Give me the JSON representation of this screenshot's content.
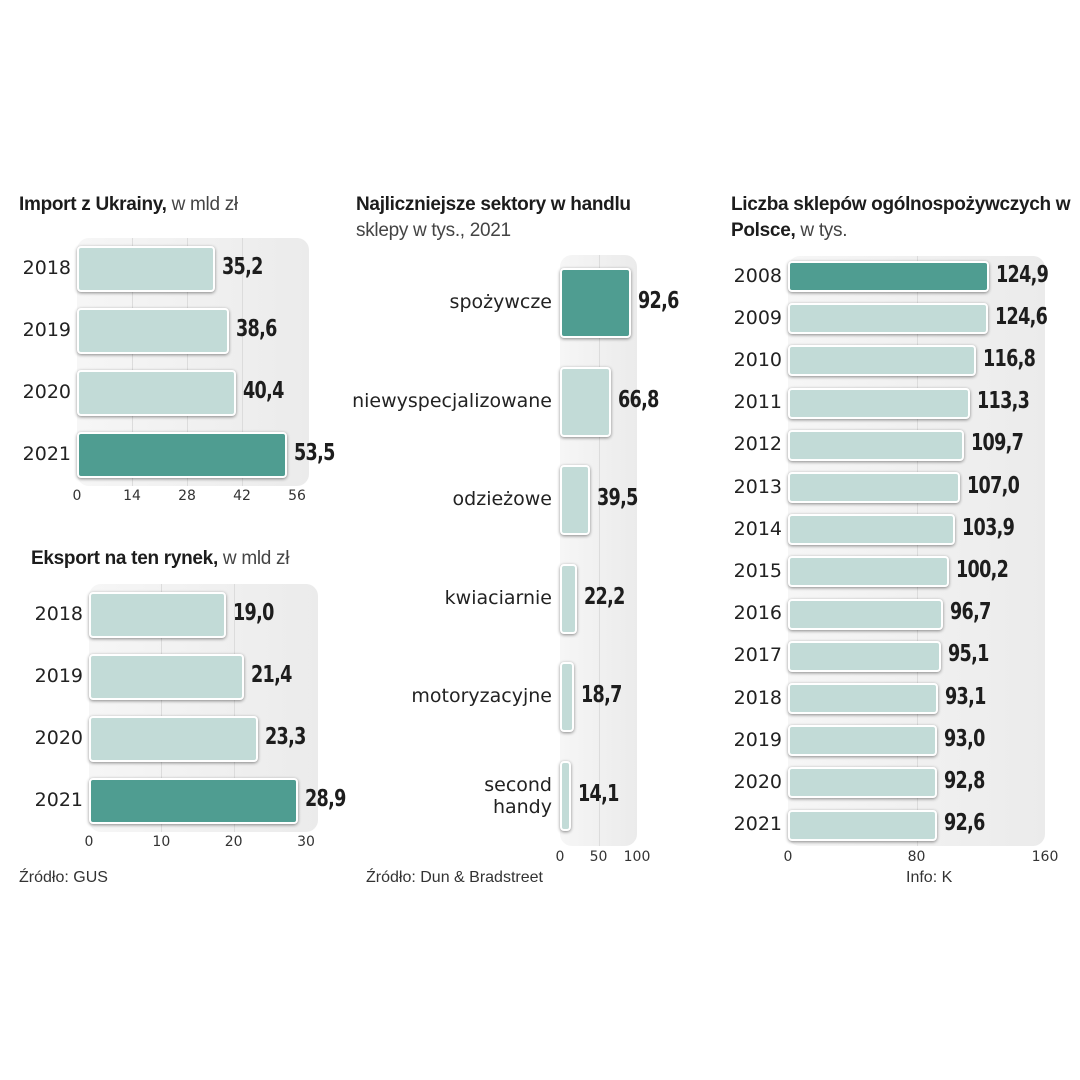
{
  "chart_data": [
    {
      "id": "import",
      "type": "bar",
      "orientation": "horizontal",
      "title": "Import z Ukrainy,",
      "subtitle": "w mld zł",
      "categories": [
        "2018",
        "2019",
        "2020",
        "2021"
      ],
      "values": [
        35.2,
        38.6,
        40.4,
        53.5
      ],
      "value_labels": [
        "35,2",
        "38,6",
        "40,4",
        "53,5"
      ],
      "highlight": [
        false,
        false,
        false,
        true
      ],
      "xlim": [
        0,
        56
      ],
      "ticks": [
        0,
        14,
        28,
        42,
        56
      ],
      "grid": true
    },
    {
      "id": "eksport",
      "type": "bar",
      "orientation": "horizontal",
      "title": "Eksport na ten rynek,",
      "subtitle": "w mld zł",
      "categories": [
        "2018",
        "2019",
        "2020",
        "2021"
      ],
      "values": [
        19.0,
        21.4,
        23.3,
        28.9
      ],
      "value_labels": [
        "19,0",
        "21,4",
        "23,3",
        "28,9"
      ],
      "highlight": [
        false,
        false,
        false,
        true
      ],
      "xlim": [
        0,
        30
      ],
      "ticks": [
        0,
        10,
        20,
        30
      ],
      "grid": true,
      "source": "Źródło: GUS"
    },
    {
      "id": "sektory",
      "type": "bar",
      "orientation": "horizontal",
      "title": "Najliczniejsze sektory w handlu",
      "subtitle": "sklepy w tys., 2021",
      "categories": [
        "spożywcze",
        "niewyspecjalizowane",
        "odzieżowe",
        "kwiaciarnie",
        "motoryzacyjne",
        "second handy"
      ],
      "values": [
        92.6,
        66.8,
        39.5,
        22.2,
        18.7,
        14.1
      ],
      "value_labels": [
        "92,6",
        "66,8",
        "39,5",
        "22,2",
        "18,7",
        "14,1"
      ],
      "highlight": [
        true,
        false,
        false,
        false,
        false,
        false
      ],
      "xlim": [
        0,
        100
      ],
      "ticks": [
        0,
        50,
        100
      ],
      "grid": true,
      "source": "Źródło: Dun & Bradstreet"
    },
    {
      "id": "sklepy",
      "type": "bar",
      "orientation": "horizontal",
      "title": "Liczba sklepów ogólnospożywczych w Polsce,",
      "subtitle": "w tys.",
      "categories": [
        "2008",
        "2009",
        "2010",
        "2011",
        "2012",
        "2013",
        "2014",
        "2015",
        "2016",
        "2017",
        "2018",
        "2019",
        "2020",
        "2021"
      ],
      "values": [
        124.9,
        124.6,
        116.8,
        113.3,
        109.7,
        107.0,
        103.9,
        100.2,
        96.7,
        95.1,
        93.1,
        93.0,
        92.8,
        92.6
      ],
      "value_labels": [
        "124,9",
        "124,6",
        "116,8",
        "113,3",
        "109,7",
        "107,0",
        "103,9",
        "100,2",
        "96,7",
        "95,1",
        "93,1",
        "93,0",
        "92,8",
        "92,6"
      ],
      "highlight": [
        true,
        false,
        false,
        false,
        false,
        false,
        false,
        false,
        false,
        false,
        false,
        false,
        false,
        false
      ],
      "xlim": [
        0,
        160
      ],
      "ticks": [
        0,
        80,
        160
      ],
      "grid": true,
      "source": "Info: K"
    }
  ],
  "colors": {
    "bar_light": "#c2dbd7",
    "bar_dark": "#4f9d91",
    "panel": "#efefef"
  }
}
